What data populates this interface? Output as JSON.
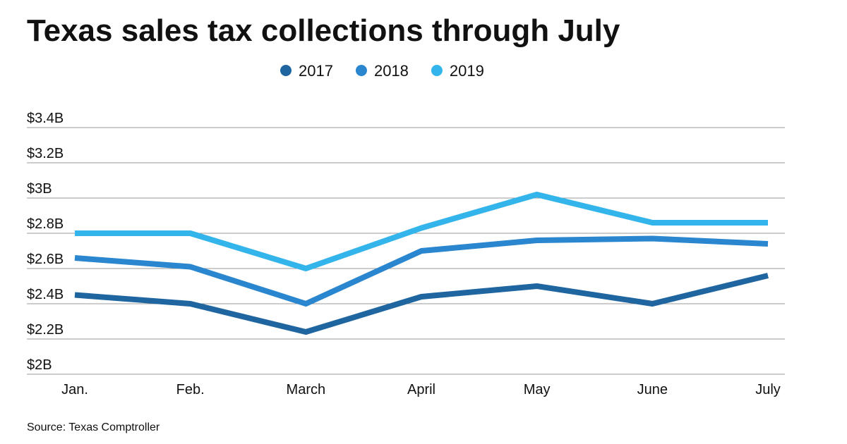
{
  "chart_data": {
    "type": "line",
    "title": "Texas sales tax collections through July",
    "source": "Source: Texas Comptroller",
    "categories": [
      "Jan.",
      "Feb.",
      "March",
      "April",
      "May",
      "June",
      "July"
    ],
    "series": [
      {
        "name": "2017",
        "color": "#1f65a0",
        "values": [
          2.45,
          2.4,
          2.24,
          2.44,
          2.5,
          2.4,
          2.56
        ]
      },
      {
        "name": "2018",
        "color": "#2a86cf",
        "values": [
          2.66,
          2.61,
          2.4,
          2.7,
          2.76,
          2.77,
          2.74
        ]
      },
      {
        "name": "2019",
        "color": "#33b5ec",
        "values": [
          2.8,
          2.8,
          2.6,
          2.83,
          3.02,
          2.86,
          2.86
        ]
      }
    ],
    "ylim": [
      2,
      3.4
    ],
    "yticks": [
      {
        "value": 2,
        "label": "$2B"
      },
      {
        "value": 2.2,
        "label": "$2.2B"
      },
      {
        "value": 2.4,
        "label": "$2.4B"
      },
      {
        "value": 2.6,
        "label": "$2.6B"
      },
      {
        "value": 2.8,
        "label": "$2.8B"
      },
      {
        "value": 3,
        "label": "$3B"
      },
      {
        "value": 3.2,
        "label": "$3.2B"
      },
      {
        "value": 3.4,
        "label": "$3.4B"
      }
    ],
    "grid": true
  }
}
